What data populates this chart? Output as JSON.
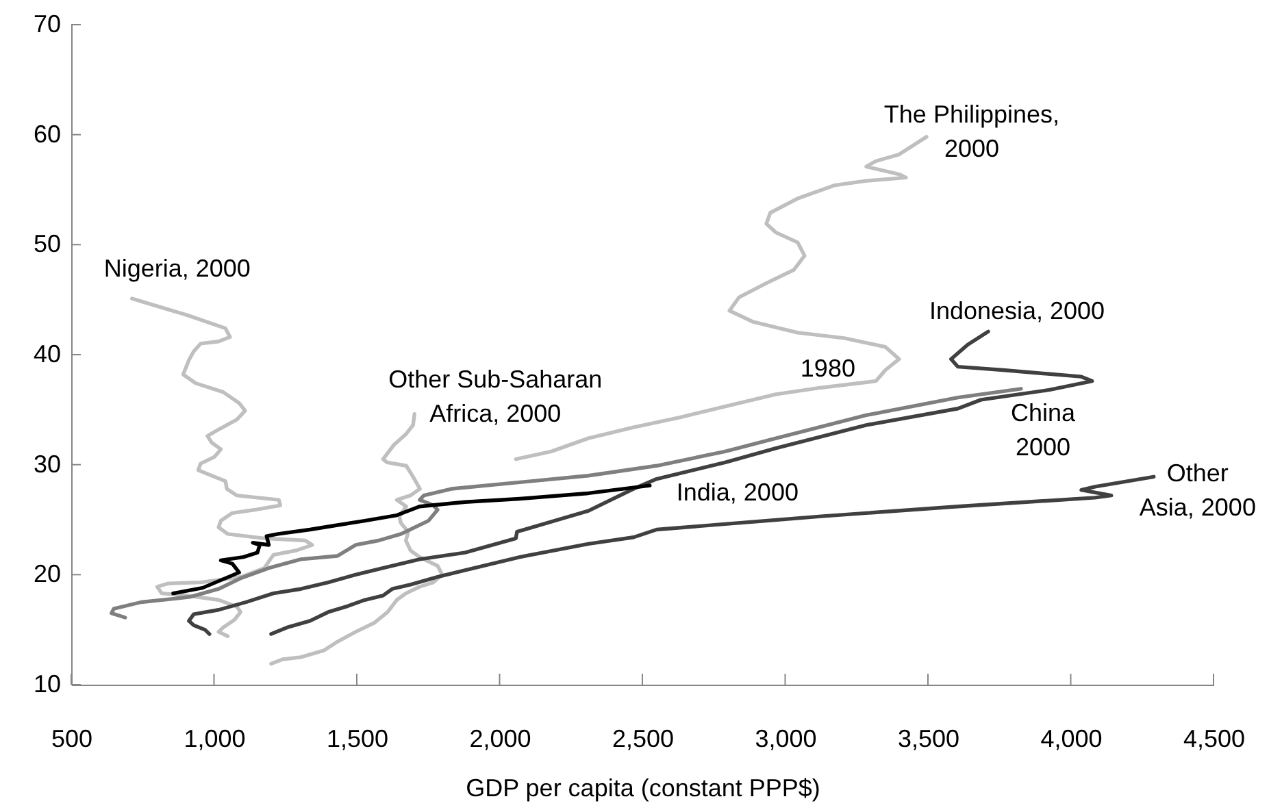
{
  "chart_data": {
    "type": "line",
    "xlabel": "GDP per capita (constant PPP$)",
    "xlim": [
      500,
      4500
    ],
    "ylim": [
      10,
      70
    ],
    "xticks": [
      500,
      {
        "value": 1000,
        "label": "1,000"
      },
      {
        "value": 1500,
        "label": "1,500"
      },
      {
        "value": 2000,
        "label": "2,000"
      },
      {
        "value": 2500,
        "label": "2,500"
      },
      {
        "value": 3000,
        "label": "3,000"
      },
      {
        "value": 3500,
        "label": "3,500"
      },
      {
        "value": 4000,
        "label": "4,000"
      },
      {
        "value": 4500,
        "label": "4,500"
      }
    ],
    "yticks": [
      10,
      20,
      30,
      40,
      50,
      60,
      70
    ],
    "series": [
      {
        "name": "Nigeria, 2000",
        "color": "#bfbfbf",
        "x": [
          1048,
          1016,
          1032,
          1072,
          1093,
          1080,
          1016,
          905,
          817,
          801,
          840,
          953,
          1096,
          1176,
          1192,
          1208,
          1288,
          1344,
          1320,
          1176,
          1048,
          1016,
          1024,
          1064,
          1144,
          1232,
          1227,
          1080,
          1045,
          1040,
          1001,
          945,
          953,
          1001,
          1024,
          992,
          977,
          1016,
          1080,
          1109,
          1088,
          1032,
          936,
          892,
          912,
          929,
          953,
          1016,
          1056,
          1040,
          905,
          713
        ],
        "values": [
          14.4,
          14.8,
          15.2,
          15.9,
          16.6,
          17.1,
          17.7,
          18.1,
          18.3,
          18.9,
          19.2,
          19.3,
          19.8,
          20.6,
          21.2,
          21.8,
          22.2,
          22.7,
          23.1,
          23.3,
          23.7,
          24.3,
          24.9,
          25.6,
          25.9,
          26.3,
          26.8,
          27.2,
          27.8,
          28.5,
          28.9,
          29.5,
          30.1,
          30.7,
          31.4,
          32.0,
          32.6,
          33.2,
          34.1,
          34.9,
          35.6,
          36.6,
          37.4,
          38.2,
          39.5,
          40.3,
          41.0,
          41.2,
          41.6,
          42.4,
          43.6,
          45.1
        ]
      },
      {
        "name": "Other Sub-Saharan\nAfrica, 2000",
        "color": "#bfbfbf",
        "x": [
          1200,
          1240,
          1304,
          1384,
          1432,
          1496,
          1560,
          1608,
          1640,
          1672,
          1720,
          1768,
          1799,
          1783,
          1751,
          1720,
          1688,
          1672,
          1680,
          1654,
          1649,
          1673,
          1640,
          1688,
          1721,
          1697,
          1673,
          1606,
          1592,
          1630,
          1673,
          1697,
          1702
        ],
        "values": [
          11.9,
          12.3,
          12.5,
          13.1,
          13.9,
          14.8,
          15.6,
          16.6,
          17.7,
          18.3,
          18.9,
          19.3,
          20.0,
          20.8,
          21.2,
          21.6,
          22.2,
          23.1,
          23.9,
          24.7,
          25.3,
          26.2,
          26.8,
          27.2,
          27.8,
          28.9,
          29.9,
          30.2,
          30.5,
          31.8,
          32.8,
          33.6,
          34.6
        ]
      },
      {
        "name": "The Philippines,\n2000",
        "color": "#bfbfbf",
        "x": [
          2057,
          2181,
          2311,
          2469,
          2632,
          2790,
          2968,
          3126,
          3318,
          3351,
          3399,
          3351,
          3207,
          3044,
          2886,
          2805,
          2838,
          2934,
          3030,
          3068,
          3044,
          2968,
          2934,
          2948,
          3044,
          3174,
          3284,
          3423,
          3399,
          3284,
          3318,
          3399,
          3495
        ],
        "values": [
          30.5,
          31.2,
          32.4,
          33.4,
          34.3,
          35.3,
          36.4,
          37.0,
          37.6,
          38.6,
          39.6,
          40.7,
          41.5,
          42.0,
          43.0,
          44.0,
          45.2,
          46.5,
          47.7,
          49.0,
          50.2,
          51.1,
          51.9,
          52.9,
          54.2,
          55.4,
          55.8,
          56.1,
          56.4,
          57.1,
          57.6,
          58.2,
          59.8
        ]
      },
      {
        "name": "China\n2000",
        "color": "#7f7f7f",
        "x": [
          689,
          641,
          649,
          745,
          857,
          920,
          1016,
          1096,
          1192,
          1304,
          1432,
          1496,
          1576,
          1655,
          1751,
          1783,
          1768,
          1720,
          1735,
          1831,
          2071,
          2311,
          2550,
          2790,
          2968,
          3284,
          3605,
          3826
        ],
        "values": [
          16.1,
          16.5,
          16.9,
          17.5,
          17.8,
          18.0,
          18.7,
          19.7,
          20.6,
          21.4,
          21.7,
          22.7,
          23.1,
          23.7,
          24.9,
          25.9,
          26.3,
          26.8,
          27.2,
          27.8,
          28.4,
          29.0,
          29.9,
          31.2,
          32.4,
          34.5,
          36.1,
          36.9
        ]
      },
      {
        "name": "Indonesia, 2000",
        "color": "#404040",
        "x": [
          984,
          968,
          929,
          912,
          929,
          1016,
          1112,
          1208,
          1304,
          1400,
          1496,
          1592,
          1720,
          1879,
          2057,
          2061,
          2311,
          2469,
          2550,
          2790,
          2968,
          3284,
          3605,
          3686,
          3926,
          4075,
          4037,
          3763,
          3605,
          3581,
          3639,
          3711
        ],
        "values": [
          14.6,
          15.0,
          15.4,
          15.8,
          16.4,
          16.8,
          17.5,
          18.3,
          18.7,
          19.3,
          20.0,
          20.6,
          21.4,
          22.0,
          23.3,
          23.9,
          25.8,
          27.8,
          28.7,
          30.2,
          31.5,
          33.6,
          35.1,
          35.9,
          36.8,
          37.6,
          38.0,
          38.6,
          38.9,
          39.6,
          40.9,
          42.1
        ]
      },
      {
        "name": "Other\nAsia, 2000",
        "color": "#404040",
        "x": [
          1200,
          1256,
          1336,
          1400,
          1464,
          1528,
          1592,
          1624,
          1688,
          1783,
          1879,
          2071,
          2311,
          2469,
          2550,
          2790,
          3126,
          3605,
          3845,
          4085,
          4142,
          4037,
          4085,
          4291
        ],
        "values": [
          14.6,
          15.2,
          15.8,
          16.6,
          17.1,
          17.7,
          18.1,
          18.7,
          19.1,
          19.8,
          20.4,
          21.6,
          22.8,
          23.4,
          24.1,
          24.6,
          25.3,
          26.2,
          26.6,
          27.0,
          27.2,
          27.7,
          28.0,
          28.9
        ]
      },
      {
        "name": "India, 2000",
        "color": "#000000",
        "x": [
          857,
          960,
          1088,
          1064,
          1024,
          1103,
          1152,
          1160,
          1136,
          1192,
          1184,
          1224,
          1336,
          1432,
          1528,
          1640,
          1720,
          1879,
          2071,
          2311,
          2526
        ],
        "values": [
          18.3,
          18.8,
          20.2,
          21.0,
          21.3,
          21.6,
          22.0,
          22.7,
          22.9,
          22.7,
          23.5,
          23.7,
          24.1,
          24.5,
          24.9,
          25.4,
          26.2,
          26.6,
          26.9,
          27.4,
          28.1
        ]
      }
    ],
    "annotations": [
      {
        "text": "1980",
        "x": 3399,
        "y": 39.6
      }
    ]
  }
}
